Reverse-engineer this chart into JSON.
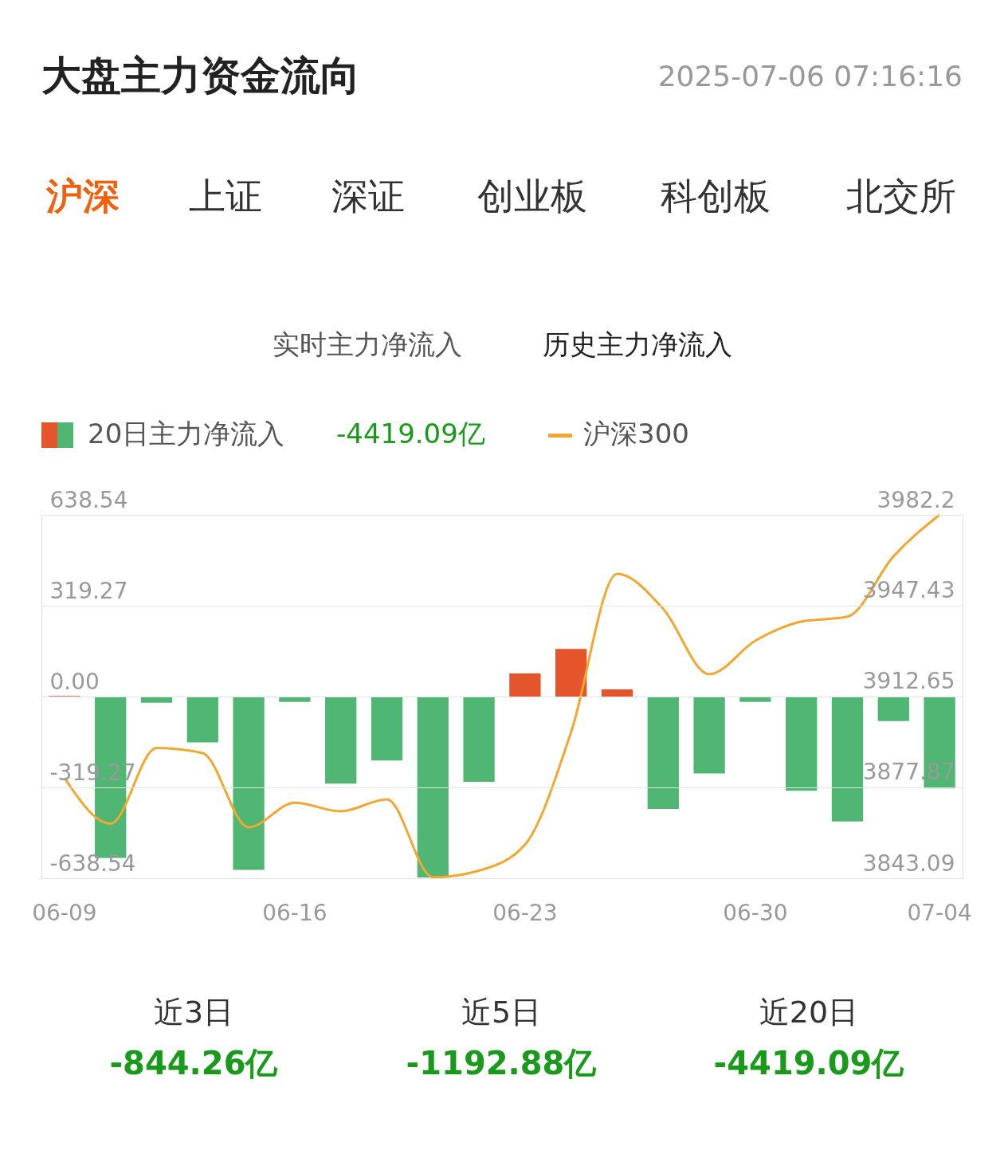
{
  "chart_data": {
    "type": "bar",
    "title": "大盘主力资金流向",
    "annotations": [
      "2025-07-06 07:16:16",
      "沪深",
      "上证",
      "深证",
      "创业板",
      "科创板",
      "北交所",
      "实时主力净流入",
      "历史主力净流入",
      "-4419.09亿",
      "近3日",
      "-844.26亿",
      "近5日",
      "-1192.88亿",
      "近20日",
      "-4419.09亿"
    ],
    "categories": [
      "06-09",
      null,
      null,
      null,
      null,
      "06-16",
      null,
      null,
      null,
      null,
      "06-23",
      null,
      null,
      null,
      null,
      "06-30",
      null,
      null,
      null,
      "07-04"
    ],
    "series": [
      {
        "name": "20日主力净流入",
        "colors": [
          "#e5552c",
          "#50b674",
          "#50b674",
          "#50b674",
          "#50b674",
          "#50b674",
          "#50b674",
          "#50b674",
          "#50b674",
          "#50b674",
          "#e5552c",
          "#e5552c",
          "#e5552c",
          "#50b674",
          "#50b674",
          "#50b674",
          "#50b674",
          "#50b674",
          "#50b674",
          "#50b674"
        ],
        "values": [
          2,
          -567,
          -22,
          -161,
          -609,
          -19,
          -306,
          -225,
          -636,
          -300,
          81,
          167,
          25,
          -395,
          -270,
          -19,
          -331,
          -439,
          -86,
          -323
        ]
      },
      {
        "name": "沪深300",
        "type": "line",
        "axis": "y2",
        "color": "#f0a830",
        "values": [
          3881.5,
          3864,
          3893,
          3891,
          3862.6,
          3872,
          3868.7,
          3873.3,
          3843.5,
          3846,
          3856,
          3899,
          3959.6,
          3946.2,
          3921.2,
          3934,
          3941.3,
          3943.2,
          3966.3,
          3982.2
        ]
      }
    ],
    "ylim": [
      -638.54,
      638.54
    ],
    "yticks": [
      -638.54,
      -319.27,
      {
        "value": 0,
        "label": "0.00"
      },
      319.27,
      638.54
    ],
    "y2lim": [
      3843.09,
      3982.2
    ],
    "y2ticks": [
      3843.09,
      3877.87,
      3912.65,
      3947.43,
      3982.2
    ],
    "grid": "y",
    "legend": "top left",
    "line_style": "solid",
    "marker": "none"
  }
}
